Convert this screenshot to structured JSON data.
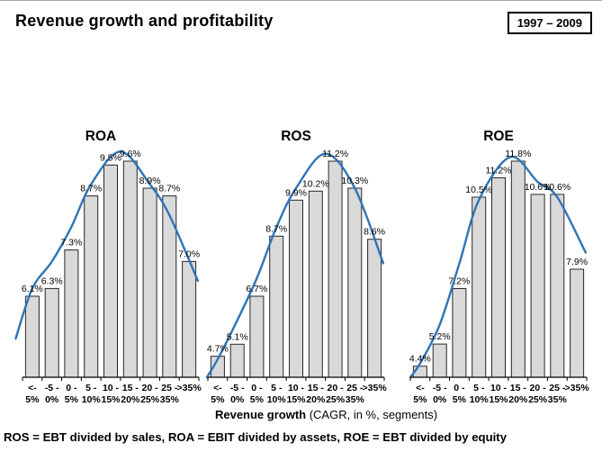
{
  "header": {
    "title": "Revenue growth and profitability",
    "period": "1997 – 2009"
  },
  "xaxis_label": {
    "bold": "Revenue growth",
    "rest": " (CAGR, in %, segments)"
  },
  "footnote": "ROS = EBT divided by sales, ROA = EBIT divided by assets, ROE = EBT divided by equity",
  "colors": {
    "bar_fill": "#d9d9d9",
    "bar_stroke": "#262626",
    "curve": "#2e74b5",
    "axis": "#000000"
  },
  "chart_data": {
    "type": "bar",
    "note": "three small-multiple bar charts with fitted trend curve; bar value axis visually starts near 4%",
    "categories": [
      "<- 5%",
      "-5 - 0%",
      "0 - 5%",
      "5 - 10%",
      "10 - 15%",
      "15 - 20%",
      "20 - 25%",
      "25 - 35%",
      ">35%"
    ],
    "category_lines": [
      [
        "<-",
        "5%"
      ],
      [
        "-5 -",
        "0%"
      ],
      [
        "0 -",
        "5%"
      ],
      [
        "5 -",
        "10%"
      ],
      [
        "10 -",
        "15%"
      ],
      [
        "15 -",
        "20%"
      ],
      [
        "20 -",
        "25%"
      ],
      [
        "25 -",
        "35%"
      ],
      [
        ">35%",
        ""
      ]
    ],
    "xlabel": "Revenue growth (CAGR, in %, segments)",
    "ylabel": "",
    "value_suffix": "%",
    "value_axis_baseline": 4.0,
    "grid": false,
    "legend": false,
    "series": [
      {
        "name": "ROA",
        "values": [
          6.1,
          6.3,
          7.3,
          8.7,
          9.5,
          9.6,
          8.9,
          8.7,
          7.0
        ],
        "labels": [
          "6.1%",
          "6.3%",
          "7.3%",
          "8.7%",
          "9.5%",
          "9.6%",
          "8.9%",
          "8.7%",
          "7.0%"
        ],
        "trend_curve": [
          [
            -0.85,
            5.0
          ],
          [
            0,
            6.3
          ],
          [
            1,
            7.0
          ],
          [
            2,
            7.9
          ],
          [
            3,
            9.0
          ],
          [
            4.5,
            9.85
          ],
          [
            6,
            9.0
          ],
          [
            7,
            8.2
          ],
          [
            8.45,
            6.5
          ]
        ]
      },
      {
        "name": "ROS",
        "values": [
          4.7,
          5.1,
          6.7,
          8.7,
          9.9,
          10.2,
          11.2,
          10.3,
          8.6
        ],
        "labels": [
          "4.7%",
          "5.1%",
          "6.7%",
          "8.7%",
          "9.9%",
          "10.2%",
          "11.2%",
          "10.3%",
          "8.6%"
        ],
        "trend_curve": [
          [
            -0.55,
            4.0
          ],
          [
            0,
            4.6
          ],
          [
            1,
            5.9
          ],
          [
            2,
            7.3
          ],
          [
            3,
            9.0
          ],
          [
            4,
            10.3
          ],
          [
            5.5,
            11.45
          ],
          [
            7,
            10.3
          ],
          [
            8.45,
            7.8
          ]
        ]
      },
      {
        "name": "ROE",
        "values": [
          4.4,
          5.2,
          7.2,
          10.5,
          11.2,
          11.8,
          10.6,
          10.6,
          7.9
        ],
        "labels": [
          "4.4%",
          "5.2%",
          "7.2%",
          "10.5%",
          "11.2%",
          "11.8%",
          "10.6%",
          "10.6%",
          "7.9%"
        ],
        "trend_curve": [
          [
            -0.5,
            3.9
          ],
          [
            0,
            4.5
          ],
          [
            1,
            5.9
          ],
          [
            2,
            8.1
          ],
          [
            3,
            10.4
          ],
          [
            4.6,
            11.95
          ],
          [
            6,
            11.05
          ],
          [
            7,
            10.5
          ],
          [
            8.45,
            8.5
          ]
        ]
      }
    ]
  }
}
